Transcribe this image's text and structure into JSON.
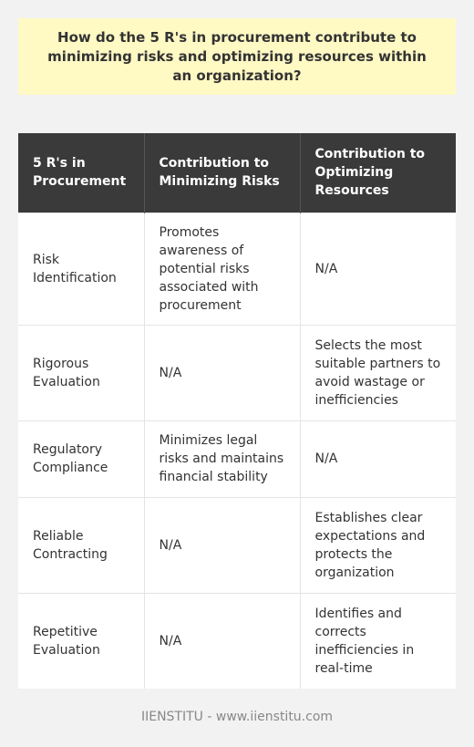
{
  "question": "How do the 5 R's in procurement contribute to minimizing risks and optimizing resources within an organization?",
  "table": {
    "headers": [
      "5 R's in Procurement",
      "Contribution to Minimizing Risks",
      "Contribution to Optimizing Resources"
    ],
    "rows": [
      [
        "Risk Identification",
        "Promotes awareness of potential risks associated with procurement",
        "N/A"
      ],
      [
        "Rigorous Evaluation",
        "N/A",
        "Selects the most suitable partners to avoid wastage or inefficiencies"
      ],
      [
        "Regulatory Compliance",
        "Minimizes legal risks and maintains financial stability",
        "N/A"
      ],
      [
        "Reliable Contracting",
        "N/A",
        "Establishes clear expectations and protects the organization"
      ],
      [
        "Repetitive Evaluation",
        "N/A",
        "Identifies and corrects inefficiencies in real-time"
      ]
    ]
  },
  "footer": "IIENSTITU - www.iienstitu.com"
}
